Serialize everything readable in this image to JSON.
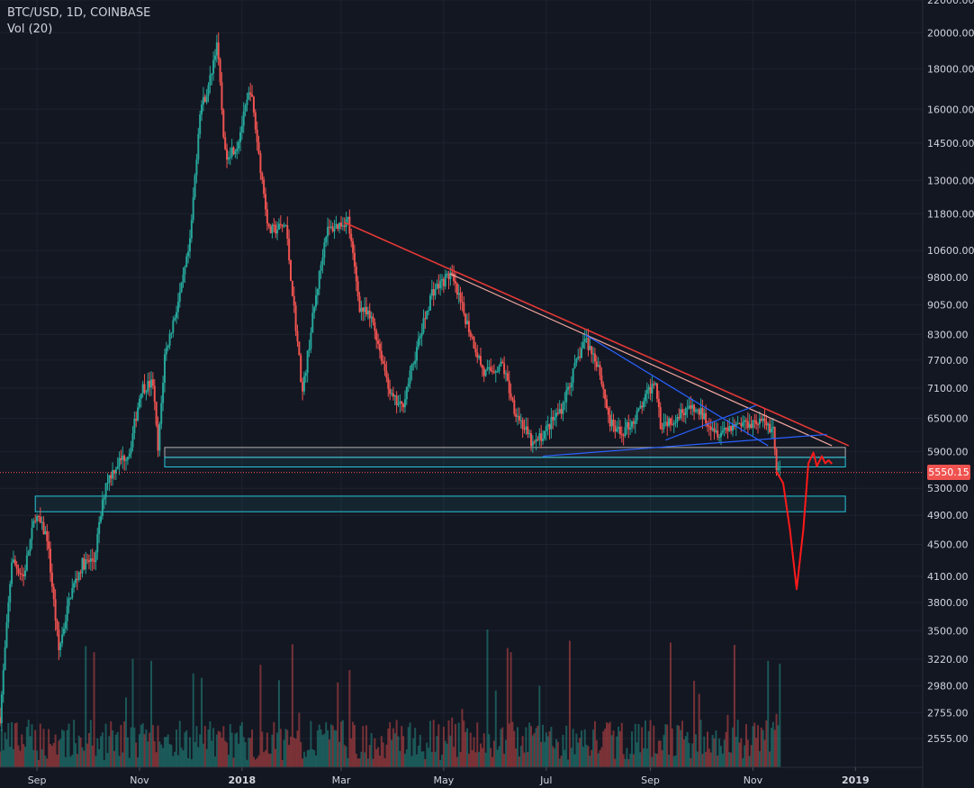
{
  "header": {
    "symbol": "BTC/USD, 1D, COINBASE",
    "volume_label": "Vol (20)"
  },
  "colors": {
    "background": "#131722",
    "up": "#26a69a",
    "down": "#ef5350",
    "grid": "#1e2230",
    "axis_text": "#d1d4dc",
    "trend_red": "#e53935",
    "trend_salmon": "#f4a9a0",
    "trend_blue": "#2962ff",
    "zone_teal": "#26c6da",
    "zone_white": "#b0b0b0",
    "projection": "#ff1a1a",
    "last_price_bg": "#ef5350"
  },
  "current_price": {
    "label": "5550.15",
    "value": 5550.15
  },
  "chart_data": {
    "type": "candlestick",
    "title": "",
    "y_scale": "log",
    "ylim": [
      2350,
      22000
    ],
    "x_range": [
      "2017-08-10",
      "2019-02-10"
    ],
    "y_ticks": [
      "22000.00",
      "20000.00",
      "18000.00",
      "16000.00",
      "14500.00",
      "13000.00",
      "11800.00",
      "10600.00",
      "9800.00",
      "9050.00",
      "8300.00",
      "7700.00",
      "7100.00",
      "6500.00",
      "5900.00",
      "5300.00",
      "4900.00",
      "4500.00",
      "4100.00",
      "3800.00",
      "3500.00",
      "3220.00",
      "2980.00",
      "2755.00",
      "2555.00"
    ],
    "x_ticks": [
      {
        "label": "Sep",
        "date": "2017-09-01",
        "bold": false
      },
      {
        "label": "Nov",
        "date": "2017-11-01",
        "bold": false
      },
      {
        "label": "2018",
        "date": "2018-01-01",
        "bold": true
      },
      {
        "label": "Mar",
        "date": "2018-03-01",
        "bold": false
      },
      {
        "label": "May",
        "date": "2018-05-01",
        "bold": false
      },
      {
        "label": "Jul",
        "date": "2018-07-01",
        "bold": false
      },
      {
        "label": "Sep",
        "date": "2018-09-01",
        "bold": false
      },
      {
        "label": "Nov",
        "date": "2018-11-01",
        "bold": false
      },
      {
        "label": "2019",
        "date": "2019-01-01",
        "bold": true
      }
    ],
    "close_path": [
      [
        "2017-08-10",
        2720
      ],
      [
        "2017-08-17",
        4300
      ],
      [
        "2017-08-24",
        4100
      ],
      [
        "2017-08-31",
        4900
      ],
      [
        "2017-09-07",
        4600
      ],
      [
        "2017-09-14",
        3300
      ],
      [
        "2017-09-21",
        3900
      ],
      [
        "2017-09-28",
        4250
      ],
      [
        "2017-10-05",
        4300
      ],
      [
        "2017-10-12",
        5400
      ],
      [
        "2017-10-19",
        5700
      ],
      [
        "2017-10-26",
        5900
      ],
      [
        "2017-11-02",
        7100
      ],
      [
        "2017-11-09",
        7200
      ],
      [
        "2017-11-12",
        5900
      ],
      [
        "2017-11-16",
        7800
      ],
      [
        "2017-11-26",
        9500
      ],
      [
        "2017-12-01",
        10800
      ],
      [
        "2017-12-07",
        16000
      ],
      [
        "2017-12-12",
        17000
      ],
      [
        "2017-12-17",
        19500
      ],
      [
        "2017-12-22",
        14000
      ],
      [
        "2017-12-29",
        14400
      ],
      [
        "2018-01-06",
        17000
      ],
      [
        "2018-01-12",
        13500
      ],
      [
        "2018-01-17",
        11200
      ],
      [
        "2018-01-27",
        11400
      ],
      [
        "2018-02-06",
        7000
      ],
      [
        "2018-02-12",
        8700
      ],
      [
        "2018-02-20",
        11200
      ],
      [
        "2018-03-05",
        11600
      ],
      [
        "2018-03-12",
        9000
      ],
      [
        "2018-03-20",
        8600
      ],
      [
        "2018-03-31",
        6900
      ],
      [
        "2018-04-06",
        6700
      ],
      [
        "2018-04-16",
        8100
      ],
      [
        "2018-04-24",
        9400
      ],
      [
        "2018-05-05",
        9900
      ],
      [
        "2018-05-14",
        8700
      ],
      [
        "2018-05-25",
        7400
      ],
      [
        "2018-06-05",
        7600
      ],
      [
        "2018-06-12",
        6700
      ],
      [
        "2018-06-23",
        6000
      ],
      [
        "2018-06-29",
        6200
      ],
      [
        "2018-07-10",
        6700
      ],
      [
        "2018-07-24",
        8200
      ],
      [
        "2018-08-01",
        7600
      ],
      [
        "2018-08-08",
        6400
      ],
      [
        "2018-08-14",
        6200
      ],
      [
        "2018-08-23",
        6500
      ],
      [
        "2018-09-04",
        7300
      ],
      [
        "2018-09-07",
        6400
      ],
      [
        "2018-09-15",
        6500
      ],
      [
        "2018-09-22",
        6700
      ],
      [
        "2018-10-01",
        6600
      ],
      [
        "2018-10-11",
        6250
      ],
      [
        "2018-10-22",
        6400
      ],
      [
        "2018-11-05",
        6450
      ],
      [
        "2018-11-13",
        6300
      ],
      [
        "2018-11-15",
        5600
      ],
      [
        "2018-11-17",
        5550
      ]
    ]
  },
  "drawings": {
    "lines": [
      {
        "color": "trend_red",
        "width": 1.6,
        "p1": [
          "2018-03-03",
          11500
        ],
        "p2": [
          "2018-12-28",
          6000
        ]
      },
      {
        "color": "trend_salmon",
        "width": 1.2,
        "p1": [
          "2018-05-05",
          9900
        ],
        "p2": [
          "2018-12-18",
          6000
        ]
      },
      {
        "color": "trend_blue",
        "width": 1.2,
        "p1": [
          "2018-07-24",
          8300
        ],
        "p2": [
          "2018-11-10",
          6000
        ]
      },
      {
        "color": "trend_blue",
        "width": 1.2,
        "p1": [
          "2018-06-29",
          5820
        ],
        "p2": [
          "2018-12-15",
          6200
        ]
      },
      {
        "color": "trend_blue",
        "width": 1.2,
        "p1": [
          "2018-09-10",
          6100
        ],
        "p2": [
          "2018-11-03",
          6750
        ]
      }
    ],
    "zones": [
      {
        "color": "zone_white",
        "x1": "2017-11-16",
        "x2": "2018-12-26",
        "y_top": 5970,
        "y_bottom": 5800
      },
      {
        "color": "zone_teal",
        "x1": "2017-11-16",
        "x2": "2018-12-26",
        "y_top": 5800,
        "y_bottom": 5640
      },
      {
        "color": "zone_teal",
        "x1": "2017-08-31",
        "x2": "2018-12-26",
        "y_top": 5180,
        "y_bottom": 4950
      }
    ],
    "projection": [
      [
        "2018-11-15",
        5560
      ],
      [
        "2018-11-19",
        5380
      ],
      [
        "2018-11-23",
        4700
      ],
      [
        "2018-11-27",
        3950
      ],
      [
        "2018-12-01",
        4700
      ],
      [
        "2018-12-04",
        5700
      ],
      [
        "2018-12-07",
        5880
      ],
      [
        "2018-12-09",
        5650
      ],
      [
        "2018-12-12",
        5820
      ],
      [
        "2018-12-14",
        5700
      ],
      [
        "2018-12-16",
        5750
      ],
      [
        "2018-12-18",
        5690
      ]
    ]
  }
}
